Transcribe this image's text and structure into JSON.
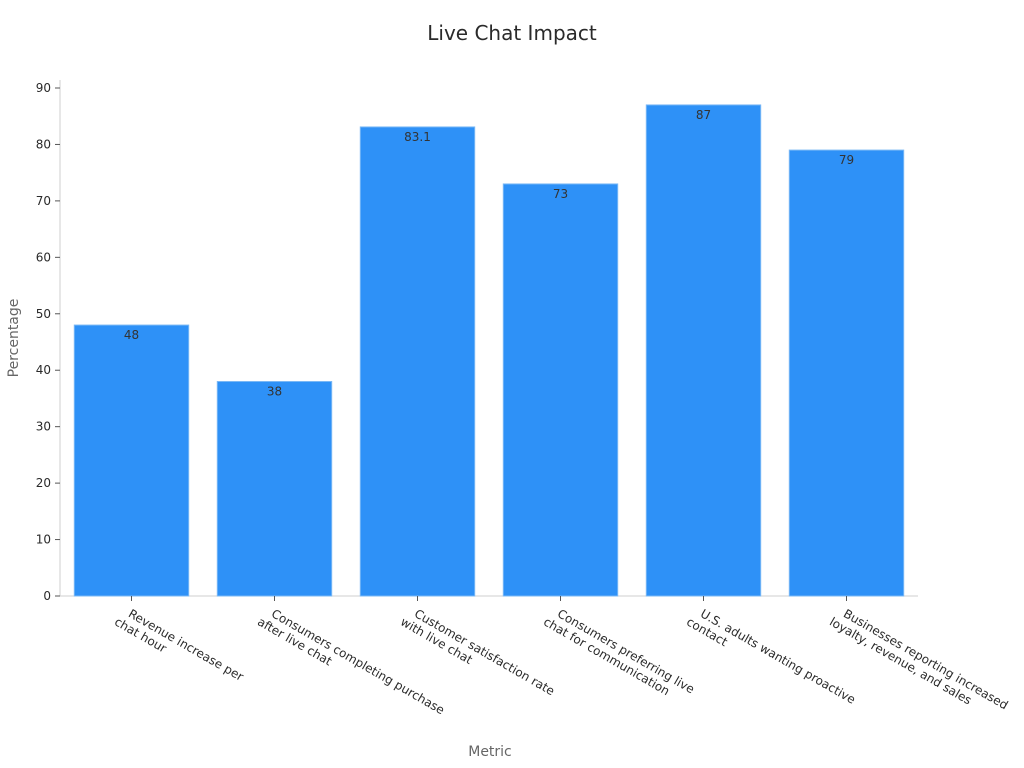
{
  "chart_data": {
    "type": "bar",
    "title": "Live Chat Impact",
    "xlabel": "Metric",
    "ylabel": "Percentage",
    "categories": [
      [
        "Revenue increase per",
        "chat hour"
      ],
      [
        "Consumers completing purchase",
        "after live chat"
      ],
      [
        "Customer satisfaction rate",
        "with live chat"
      ],
      [
        "Consumers preferring live",
        "chat for communication"
      ],
      [
        "U.S. adults wanting proactive",
        "contact"
      ],
      [
        "Businesses reporting increased",
        "loyalty, revenue, and sales"
      ]
    ],
    "values": [
      48,
      38,
      83.1,
      73,
      87,
      79
    ],
    "value_labels": [
      "48",
      "38",
      "83.1",
      "73",
      "87",
      "79"
    ],
    "ylim": [
      0,
      90
    ],
    "yticks": [
      0,
      10,
      20,
      30,
      40,
      50,
      60,
      70,
      80,
      90
    ],
    "grid": false,
    "bar_color": "#2e91f7",
    "bar_edge_color": "#7ab8f5"
  }
}
